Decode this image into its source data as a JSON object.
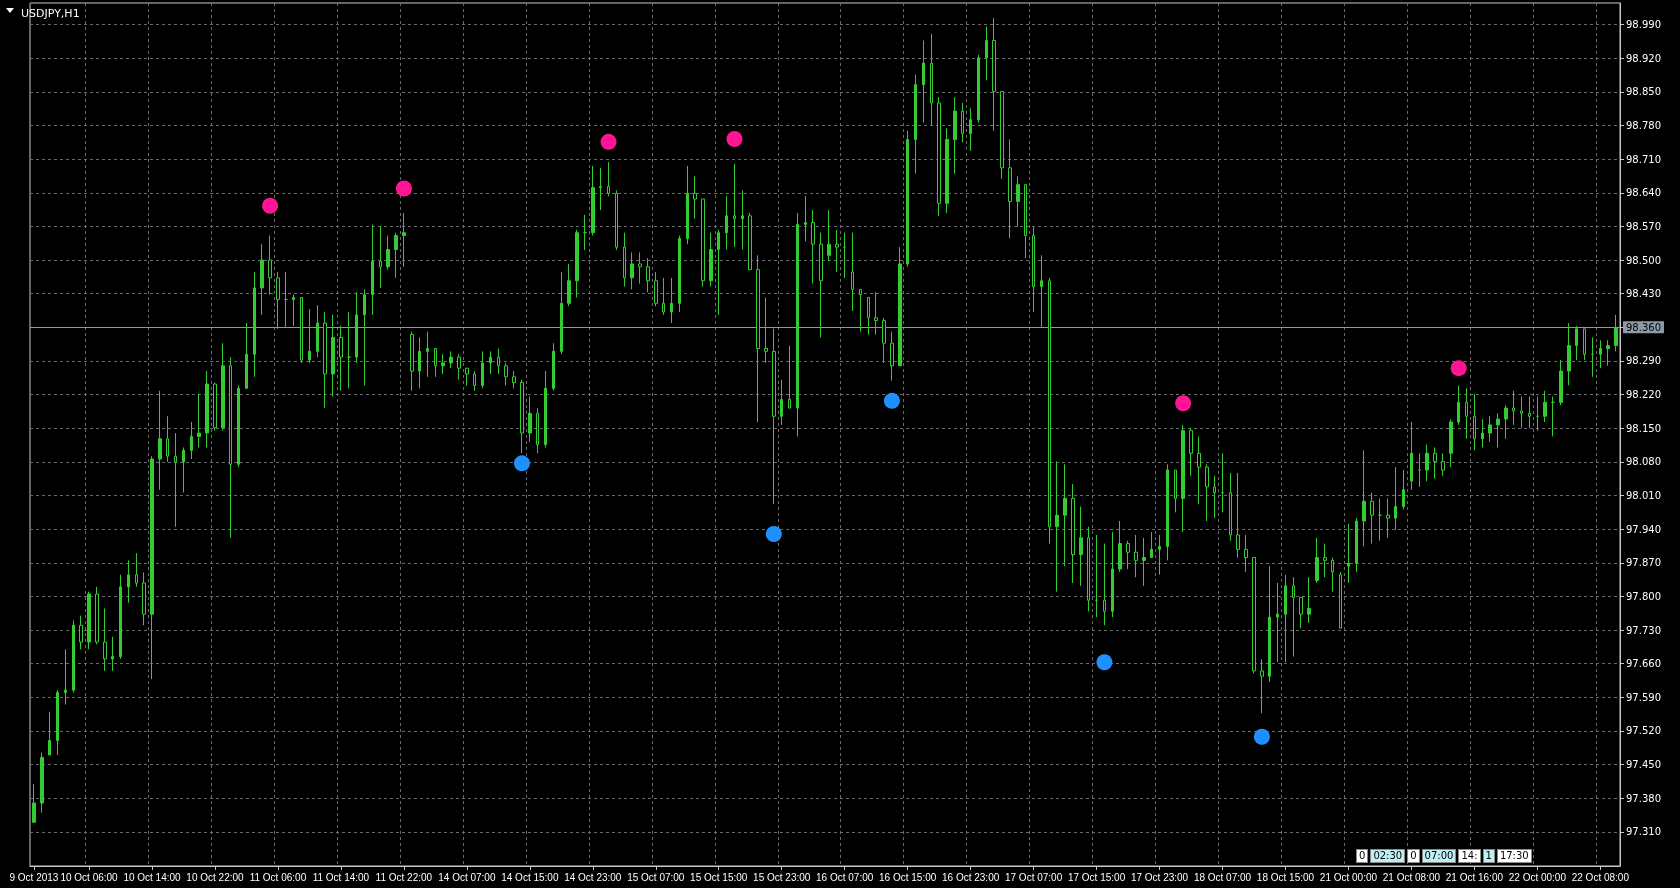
{
  "chart_data": {
    "type": "candlestick",
    "title": "USDJPY,H1",
    "categories": [
      "9 Oct 2013",
      null,
      null,
      null,
      null,
      null,
      null,
      "10 Oct 06:00",
      null,
      null,
      null,
      null,
      null,
      null,
      null,
      "10 Oct 14:00",
      null,
      null,
      null,
      null,
      null,
      null,
      null,
      "10 Oct 22:00",
      null,
      null,
      null,
      null,
      null,
      null,
      null,
      "11 Oct 06:00",
      null,
      null,
      null,
      null,
      null,
      null,
      null,
      "11 Oct 14:00",
      null,
      null,
      null,
      null,
      null,
      null,
      null,
      "11 Oct 22:00",
      null,
      null,
      null,
      null,
      null,
      null,
      null,
      "14 Oct 07:00",
      null,
      null,
      null,
      null,
      null,
      null,
      null,
      "14 Oct 15:00",
      null,
      null,
      null,
      null,
      null,
      null,
      null,
      "14 Oct 23:00",
      null,
      null,
      null,
      null,
      null,
      null,
      null,
      "15 Oct 07:00",
      null,
      null,
      null,
      null,
      null,
      null,
      null,
      "15 Oct 15:00",
      null,
      null,
      null,
      null,
      null,
      null,
      null,
      "15 Oct 23:00",
      null,
      null,
      null,
      null,
      null,
      null,
      null,
      "16 Oct 07:00",
      null,
      null,
      null,
      null,
      null,
      null,
      null,
      "16 Oct 15:00",
      null,
      null,
      null,
      null,
      null,
      null,
      null,
      "16 Oct 23:00",
      null,
      null,
      null,
      null,
      null,
      null,
      null,
      "17 Oct 07:00",
      null,
      null,
      null,
      null,
      null,
      null,
      null,
      "17 Oct 15:00",
      null,
      null,
      null,
      null,
      null,
      null,
      null,
      "17 Oct 23:00",
      null,
      null,
      null,
      null,
      null,
      null,
      null,
      "18 Oct 07:00",
      null,
      null,
      null,
      null,
      null,
      null,
      null,
      "18 Oct 15:00",
      null,
      null,
      null,
      null,
      null,
      null,
      null,
      "21 Oct 00:00",
      null,
      null,
      null,
      null,
      null,
      null,
      null,
      "21 Oct 08:00",
      null,
      null,
      null,
      null,
      null,
      null,
      null,
      "21 Oct 16:00",
      null,
      null,
      null,
      null,
      null,
      null,
      null,
      "22 Oct 00:00",
      null,
      null,
      null,
      null,
      null,
      null,
      null,
      "22 Oct 08:00",
      null,
      null
    ],
    "series": [
      {
        "color": "#33cc33",
        "ohlc": [
          [
            97.33,
            97.41,
            97.33,
            97.37
          ],
          [
            97.37,
            97.475,
            97.35,
            97.465
          ],
          [
            97.47,
            97.56,
            97.47,
            97.5
          ],
          [
            97.5,
            97.605,
            97.47,
            97.6
          ],
          [
            97.6,
            97.69,
            97.575,
            97.605
          ],
          [
            97.605,
            97.75,
            97.6,
            97.74
          ],
          [
            97.74,
            97.76,
            97.69,
            97.705
          ],
          [
            97.705,
            97.81,
            97.69,
            97.805
          ],
          [
            97.805,
            97.82,
            97.7,
            97.705
          ],
          [
            97.705,
            97.775,
            97.645,
            97.67
          ],
          [
            97.67,
            97.716,
            97.645,
            97.675
          ],
          [
            97.675,
            97.845,
            97.67,
            97.82
          ],
          [
            97.82,
            97.875,
            97.787,
            97.845
          ],
          [
            97.845,
            97.89,
            97.82,
            97.828
          ],
          [
            97.828,
            97.85,
            97.74,
            97.763
          ],
          [
            97.763,
            98.092,
            97.628,
            98.086
          ],
          [
            98.086,
            98.228,
            98.022,
            98.128
          ],
          [
            98.128,
            98.175,
            98.08,
            98.092
          ],
          [
            98.092,
            98.14,
            97.945,
            98.08
          ],
          [
            98.08,
            98.11,
            98.016,
            98.104
          ],
          [
            98.104,
            98.163,
            98.086,
            98.133
          ],
          [
            98.133,
            98.222,
            98.11,
            98.14
          ],
          [
            98.14,
            98.269,
            98.11,
            98.242
          ],
          [
            98.242,
            98.245,
            98.145,
            98.151
          ],
          [
            98.151,
            98.327,
            98.145,
            98.28
          ],
          [
            98.28,
            98.298,
            97.922,
            98.075
          ],
          [
            98.075,
            98.239,
            98.069,
            98.233
          ],
          [
            98.233,
            98.369,
            98.233,
            98.304
          ],
          [
            98.304,
            98.475,
            98.257,
            98.442
          ],
          [
            98.442,
            98.533,
            98.386,
            98.5
          ],
          [
            98.5,
            98.551,
            98.428,
            98.463
          ],
          [
            98.463,
            98.475,
            98.357,
            98.418
          ],
          [
            98.418,
            98.475,
            98.36,
            98.418
          ],
          [
            98.418,
            98.428,
            98.363,
            98.422
          ],
          [
            98.422,
            98.422,
            98.286,
            98.292
          ],
          [
            98.292,
            98.398,
            98.286,
            98.31
          ],
          [
            98.31,
            98.406,
            98.298,
            98.369
          ],
          [
            98.369,
            98.392,
            98.192,
            98.263
          ],
          [
            98.263,
            98.386,
            98.216,
            98.339
          ],
          [
            98.339,
            98.363,
            98.228,
            98.298
          ],
          [
            98.298,
            98.392,
            98.233,
            98.298
          ],
          [
            98.298,
            98.433,
            98.286,
            98.386
          ],
          [
            98.386,
            98.439,
            98.239,
            98.428
          ],
          [
            98.428,
            98.574,
            98.386,
            98.498
          ],
          [
            98.498,
            98.571,
            98.442,
            98.486
          ],
          [
            98.486,
            98.551,
            98.48,
            98.522
          ],
          [
            98.522,
            98.557,
            98.463,
            98.551
          ],
          [
            98.551,
            98.598,
            98.486,
            98.557
          ],
          [
            98.345,
            98.351,
            98.228,
            98.269
          ],
          [
            98.269,
            98.339,
            98.233,
            98.31
          ],
          [
            98.31,
            98.351,
            98.257,
            98.316
          ],
          [
            98.316,
            98.316,
            98.257,
            98.28
          ],
          [
            98.28,
            98.304,
            98.263,
            98.286
          ],
          [
            98.286,
            98.31,
            98.275,
            98.298
          ],
          [
            98.298,
            98.304,
            98.251,
            98.275
          ],
          [
            98.275,
            98.275,
            98.239,
            98.263
          ],
          [
            98.263,
            98.269,
            98.228,
            98.239
          ],
          [
            98.239,
            98.31,
            98.233,
            98.286
          ],
          [
            98.286,
            98.31,
            98.263,
            98.298
          ],
          [
            98.298,
            98.316,
            98.263,
            98.28
          ],
          [
            98.28,
            98.286,
            98.239,
            98.257
          ],
          [
            98.257,
            98.269,
            98.233,
            98.245
          ],
          [
            98.245,
            98.251,
            98.098,
            98.14
          ],
          [
            98.14,
            98.216,
            98.122,
            98.181
          ],
          [
            98.181,
            98.192,
            98.098,
            98.116
          ],
          [
            98.116,
            98.269,
            98.11,
            98.233
          ],
          [
            98.233,
            98.327,
            98.228,
            98.31
          ],
          [
            98.31,
            98.475,
            98.304,
            98.41
          ],
          [
            98.41,
            98.492,
            98.404,
            98.457
          ],
          [
            98.457,
            98.563,
            98.422,
            98.557
          ],
          [
            98.557,
            98.594,
            98.521,
            98.557
          ],
          [
            98.557,
            98.696,
            98.551,
            98.651
          ],
          [
            98.651,
            98.692,
            98.604,
            98.653
          ],
          [
            98.653,
            98.704,
            98.633,
            98.639
          ],
          [
            98.639,
            98.645,
            98.521,
            98.527
          ],
          [
            98.527,
            98.557,
            98.445,
            98.463
          ],
          [
            98.463,
            98.516,
            98.439,
            98.492
          ],
          [
            98.492,
            98.516,
            98.451,
            98.486
          ],
          [
            98.486,
            98.504,
            98.433,
            98.457
          ],
          [
            98.457,
            98.475,
            98.404,
            98.41
          ],
          [
            98.41,
            98.463,
            98.386,
            98.392
          ],
          [
            98.392,
            98.463,
            98.369,
            98.41
          ],
          [
            98.41,
            98.551,
            98.392,
            98.545
          ],
          [
            98.545,
            98.696,
            98.533,
            98.639
          ],
          [
            98.639,
            98.674,
            98.586,
            98.627
          ],
          [
            98.627,
            98.627,
            98.445,
            98.457
          ],
          [
            98.457,
            98.557,
            98.445,
            98.522
          ],
          [
            98.522,
            98.563,
            98.386,
            98.557
          ],
          [
            98.557,
            98.633,
            98.522,
            98.592
          ],
          [
            98.592,
            98.7,
            98.527,
            98.586
          ],
          [
            98.586,
            98.645,
            98.522,
            98.592
          ],
          [
            98.592,
            98.598,
            98.48,
            98.48
          ],
          [
            98.48,
            98.51,
            98.163,
            98.316
          ],
          [
            98.316,
            98.422,
            98.286,
            98.31
          ],
          [
            98.31,
            98.357,
            97.992,
            98.175
          ],
          [
            98.175,
            98.251,
            98.157,
            98.21
          ],
          [
            98.21,
            98.322,
            98.192,
            98.192
          ],
          [
            98.192,
            98.598,
            98.133,
            98.574
          ],
          [
            98.574,
            98.633,
            98.539,
            98.578
          ],
          [
            98.578,
            98.604,
            98.451,
            98.533
          ],
          [
            98.533,
            98.557,
            98.339,
            98.457
          ],
          [
            98.51,
            98.604,
            98.498,
            98.533
          ],
          [
            98.533,
            98.563,
            98.475,
            98.527
          ],
          [
            98.527,
            98.557,
            98.463,
            98.527
          ],
          [
            98.475,
            98.557,
            98.394,
            98.439
          ],
          [
            98.439,
            98.439,
            98.351,
            98.428
          ],
          [
            98.422,
            98.422,
            98.345,
            98.38
          ],
          [
            98.38,
            98.433,
            98.345,
            98.374
          ],
          [
            98.374,
            98.38,
            98.286,
            98.327
          ],
          [
            98.327,
            98.351,
            98.249,
            98.28
          ],
          [
            98.28,
            98.527,
            98.28,
            98.492
          ],
          [
            98.492,
            98.769,
            98.486,
            98.751
          ],
          [
            98.751,
            98.886,
            98.68,
            98.865
          ],
          [
            98.865,
            98.957,
            98.786,
            98.91
          ],
          [
            98.91,
            98.971,
            98.78,
            98.827
          ],
          [
            98.827,
            98.839,
            98.592,
            98.618
          ],
          [
            98.618,
            98.774,
            98.598,
            98.751
          ],
          [
            98.751,
            98.839,
            98.68,
            98.81
          ],
          [
            98.81,
            98.827,
            98.745,
            98.763
          ],
          [
            98.763,
            98.816,
            98.727,
            98.792
          ],
          [
            98.792,
            98.927,
            98.786,
            98.921
          ],
          [
            98.921,
            98.986,
            98.874,
            98.957
          ],
          [
            98.957,
            99.004,
            98.769,
            98.851
          ],
          [
            98.851,
            98.851,
            98.669,
            98.692
          ],
          [
            98.692,
            98.751,
            98.545,
            98.622
          ],
          [
            98.622,
            98.674,
            98.569,
            98.657
          ],
          [
            98.657,
            98.657,
            98.504,
            98.551
          ],
          [
            98.551,
            98.569,
            98.392,
            98.445
          ],
          [
            98.445,
            98.51,
            98.36,
            98.457
          ],
          [
            98.457,
            98.463,
            97.91,
            97.945
          ],
          [
            97.945,
            98.081,
            97.81,
            97.969
          ],
          [
            97.969,
            98.075,
            97.863,
            98.004
          ],
          [
            98.004,
            98.034,
            97.828,
            97.887
          ],
          [
            97.887,
            97.987,
            97.822,
            97.922
          ],
          [
            97.922,
            97.945,
            97.769,
            97.792
          ],
          [
            97.792,
            97.928,
            97.757,
            97.792
          ],
          [
            97.792,
            97.91,
            97.74,
            97.769
          ],
          [
            97.769,
            97.934,
            97.757,
            97.857
          ],
          [
            97.857,
            97.957,
            97.851,
            97.91
          ],
          [
            97.91,
            97.916,
            97.857,
            97.892
          ],
          [
            97.892,
            97.928,
            97.84,
            97.875
          ],
          [
            97.875,
            97.922,
            97.822,
            97.881
          ],
          [
            97.881,
            97.934,
            97.881,
            97.898
          ],
          [
            97.898,
            97.928,
            97.845,
            97.904
          ],
          [
            97.904,
            98.075,
            97.875,
            98.063
          ],
          [
            98.063,
            98.063,
            97.975,
            98.004
          ],
          [
            98.004,
            98.157,
            97.934,
            98.145
          ],
          [
            98.145,
            98.151,
            98.051,
            98.098
          ],
          [
            98.098,
            98.133,
            97.992,
            98.069
          ],
          [
            98.069,
            98.075,
            97.957,
            98.028
          ],
          [
            98.028,
            98.051,
            97.963,
            98.016
          ],
          [
            98.016,
            98.098,
            97.975,
            98.016
          ],
          [
            98.016,
            98.057,
            97.916,
            97.928
          ],
          [
            97.928,
            98.057,
            97.881,
            97.898
          ],
          [
            97.898,
            97.928,
            97.851,
            97.881
          ],
          [
            97.881,
            97.881,
            97.64,
            97.645
          ],
          [
            97.645,
            97.669,
            97.557,
            97.634
          ],
          [
            97.634,
            97.863,
            97.622,
            97.757
          ],
          [
            97.757,
            97.828,
            97.663,
            97.763
          ],
          [
            97.763,
            97.845,
            97.663,
            97.822
          ],
          [
            97.822,
            97.84,
            97.675,
            97.798
          ],
          [
            97.798,
            97.798,
            97.734,
            97.763
          ],
          [
            97.763,
            97.84,
            97.745,
            97.775
          ],
          [
            97.833,
            97.922,
            97.828,
            97.881
          ],
          [
            97.881,
            97.91,
            97.84,
            97.875
          ],
          [
            97.875,
            97.881,
            97.81,
            97.851
          ],
          [
            97.845,
            97.851,
            97.734,
            97.734
          ],
          [
            97.863,
            97.951,
            97.828,
            97.869
          ],
          [
            97.869,
            97.963,
            97.851,
            97.957
          ],
          [
            97.957,
            98.104,
            97.904,
            97.998
          ],
          [
            97.998,
            98.016,
            97.91,
            97.969
          ],
          [
            97.969,
            98.004,
            97.916,
            97.969
          ],
          [
            97.969,
            98.004,
            97.922,
            97.963
          ],
          [
            97.963,
            98.069,
            97.939,
            97.987
          ],
          [
            97.987,
            98.063,
            97.981,
            98.022
          ],
          [
            98.04,
            98.163,
            98.022,
            98.098
          ],
          [
            98.063,
            98.098,
            98.028,
            98.063
          ],
          [
            98.063,
            98.116,
            98.04,
            98.098
          ],
          [
            98.098,
            98.11,
            98.045,
            98.081
          ],
          [
            98.081,
            98.098,
            98.051,
            98.063
          ],
          [
            98.098,
            98.169,
            98.069,
            98.163
          ],
          [
            98.163,
            98.239,
            98.157,
            98.204
          ],
          [
            98.204,
            98.233,
            98.128,
            98.175
          ],
          [
            98.175,
            98.222,
            98.104,
            98.128
          ],
          [
            98.128,
            98.169,
            98.11,
            98.14
          ],
          [
            98.14,
            98.175,
            98.122,
            98.157
          ],
          [
            98.157,
            98.181,
            98.11,
            98.169
          ],
          [
            98.169,
            98.198,
            98.128,
            98.192
          ],
          [
            98.192,
            98.228,
            98.157,
            98.186
          ],
          [
            98.186,
            98.216,
            98.151,
            98.181
          ],
          [
            98.181,
            98.216,
            98.151,
            98.175
          ],
          [
            98.175,
            98.216,
            98.145,
            98.175
          ],
          [
            98.175,
            98.228,
            98.163,
            98.204
          ],
          [
            98.204,
            98.216,
            98.133,
            98.204
          ],
          [
            98.204,
            98.292,
            98.198,
            98.269
          ],
          [
            98.269,
            98.369,
            98.239,
            98.322
          ],
          [
            98.322,
            98.363,
            98.292,
            98.357
          ],
          [
            98.357,
            98.357,
            98.292,
            98.304
          ],
          [
            98.304,
            98.339,
            98.257,
            98.304
          ],
          [
            98.304,
            98.333,
            98.275,
            98.316
          ],
          [
            98.316,
            98.333,
            98.28,
            98.322
          ],
          [
            98.322,
            98.386,
            98.31,
            98.36
          ]
        ]
      },
      {
        "type": "scatter",
        "color": "#ff1493",
        "values": [
          null,
          null,
          null,
          null,
          null,
          null,
          null,
          null,
          null,
          null,
          null,
          null,
          null,
          null,
          null,
          null,
          null,
          null,
          null,
          null,
          null,
          null,
          null,
          null,
          null,
          null,
          null,
          null,
          null,
          null,
          98.613,
          null,
          null,
          null,
          null,
          null,
          null,
          null,
          null,
          null,
          null,
          null,
          null,
          null,
          null,
          null,
          null,
          98.649,
          null,
          null,
          null,
          null,
          null,
          null,
          null,
          null,
          null,
          null,
          null,
          null,
          null,
          null,
          null,
          null,
          null,
          null,
          null,
          null,
          null,
          null,
          null,
          null,
          null,
          98.746,
          null,
          null,
          null,
          null,
          null,
          null,
          null,
          null,
          null,
          null,
          null,
          null,
          null,
          null,
          null,
          98.752,
          null,
          null,
          null,
          null,
          null,
          null,
          null,
          null,
          null,
          null,
          null,
          null,
          null,
          null,
          null,
          null,
          null,
          null,
          null,
          null,
          null,
          null,
          null,
          null,
          null,
          null,
          null,
          null,
          null,
          null,
          null,
          null,
          null,
          null,
          null,
          null,
          null,
          null,
          null,
          null,
          null,
          null,
          null,
          null,
          null,
          null,
          null,
          null,
          null,
          null,
          null,
          null,
          null,
          null,
          null,
          null,
          98.202,
          null,
          null,
          null,
          null,
          null,
          null,
          null,
          null,
          null,
          null,
          null,
          null,
          null,
          null,
          null,
          null,
          null,
          null,
          null,
          null,
          null,
          null,
          null,
          null,
          null,
          null,
          null,
          null,
          null,
          null,
          null,
          null,
          null,
          null,
          98.275,
          null,
          null,
          null,
          null,
          null,
          null,
          null,
          null,
          null,
          null,
          null,
          null,
          null,
          null,
          null,
          null,
          null,
          null,
          null,
          null
        ]
      },
      {
        "type": "scatter",
        "color": "#1e90ff",
        "values": [
          null,
          null,
          null,
          null,
          null,
          null,
          null,
          null,
          null,
          null,
          null,
          null,
          null,
          null,
          null,
          null,
          null,
          null,
          null,
          null,
          null,
          null,
          null,
          null,
          null,
          null,
          null,
          null,
          null,
          null,
          null,
          null,
          null,
          null,
          null,
          null,
          null,
          null,
          null,
          null,
          null,
          null,
          null,
          null,
          null,
          null,
          null,
          null,
          null,
          null,
          null,
          null,
          null,
          null,
          null,
          null,
          null,
          null,
          null,
          null,
          null,
          null,
          98.077,
          null,
          null,
          null,
          null,
          null,
          null,
          null,
          null,
          null,
          null,
          null,
          null,
          null,
          null,
          null,
          null,
          null,
          null,
          null,
          null,
          null,
          null,
          null,
          null,
          null,
          null,
          null,
          null,
          null,
          null,
          null,
          97.93,
          null,
          null,
          null,
          null,
          null,
          null,
          null,
          null,
          null,
          null,
          null,
          null,
          null,
          null,
          98.207,
          null,
          null,
          null,
          null,
          null,
          null,
          null,
          null,
          null,
          null,
          null,
          null,
          null,
          null,
          null,
          null,
          null,
          null,
          null,
          null,
          null,
          null,
          null,
          null,
          null,
          null,
          97.663,
          null,
          null,
          null,
          null,
          null,
          null,
          null,
          null,
          null,
          null,
          null,
          null,
          null,
          null,
          null,
          null,
          null,
          null,
          null,
          97.508,
          null,
          null,
          null,
          null,
          null,
          null,
          null,
          null,
          null,
          null,
          null,
          null,
          null,
          null,
          null,
          null,
          null,
          null,
          null,
          null,
          null,
          null,
          null,
          null,
          null,
          null,
          null,
          null,
          null,
          null,
          null,
          null,
          null,
          null,
          null,
          null,
          null,
          null,
          null,
          null,
          null,
          null,
          null,
          null,
          null
        ]
      }
    ],
    "ylim": [
      97.239,
      99.035
    ],
    "yticks": [
      {
        "value": 97.31,
        "label": "97.310"
      },
      {
        "value": 97.38,
        "label": "97.380"
      },
      {
        "value": 97.45,
        "label": "97.450"
      },
      {
        "value": 97.52,
        "label": "97.520"
      },
      {
        "value": 97.59,
        "label": "97.590"
      },
      {
        "value": 97.66,
        "label": "97.660"
      },
      {
        "value": 97.73,
        "label": "97.730"
      },
      {
        "value": 97.8,
        "label": "97.800"
      },
      {
        "value": 97.87,
        "label": "97.870"
      },
      {
        "value": 97.94,
        "label": "97.940"
      },
      {
        "value": 98.01,
        "label": "98.010"
      },
      {
        "value": 98.08,
        "label": "98.080"
      },
      {
        "value": 98.15,
        "label": "98.150"
      },
      {
        "value": 98.22,
        "label": "98.220"
      },
      {
        "value": 98.29,
        "label": "98.290"
      },
      {
        "value": 98.36,
        "label": null
      },
      {
        "value": 98.43,
        "label": "98.430"
      },
      {
        "value": 98.5,
        "label": "98.500"
      },
      {
        "value": 98.57,
        "label": "98.570"
      },
      {
        "value": 98.64,
        "label": "98.640"
      },
      {
        "value": 98.71,
        "label": "98.710"
      },
      {
        "value": 98.78,
        "label": "98.780"
      },
      {
        "value": 98.85,
        "label": "98.850"
      },
      {
        "value": 98.92,
        "label": "98.920"
      },
      {
        "value": 98.99,
        "label": "98.990"
      }
    ],
    "ref_lines": [
      {
        "axis": "y",
        "value": 98.36,
        "label": "98.360",
        "color": "#8c9aa5"
      }
    ],
    "annotations": [
      "0",
      "02:30",
      "0",
      "07:00",
      "14:",
      "1",
      "17:30"
    ],
    "grid": true,
    "marker": "circle"
  }
}
